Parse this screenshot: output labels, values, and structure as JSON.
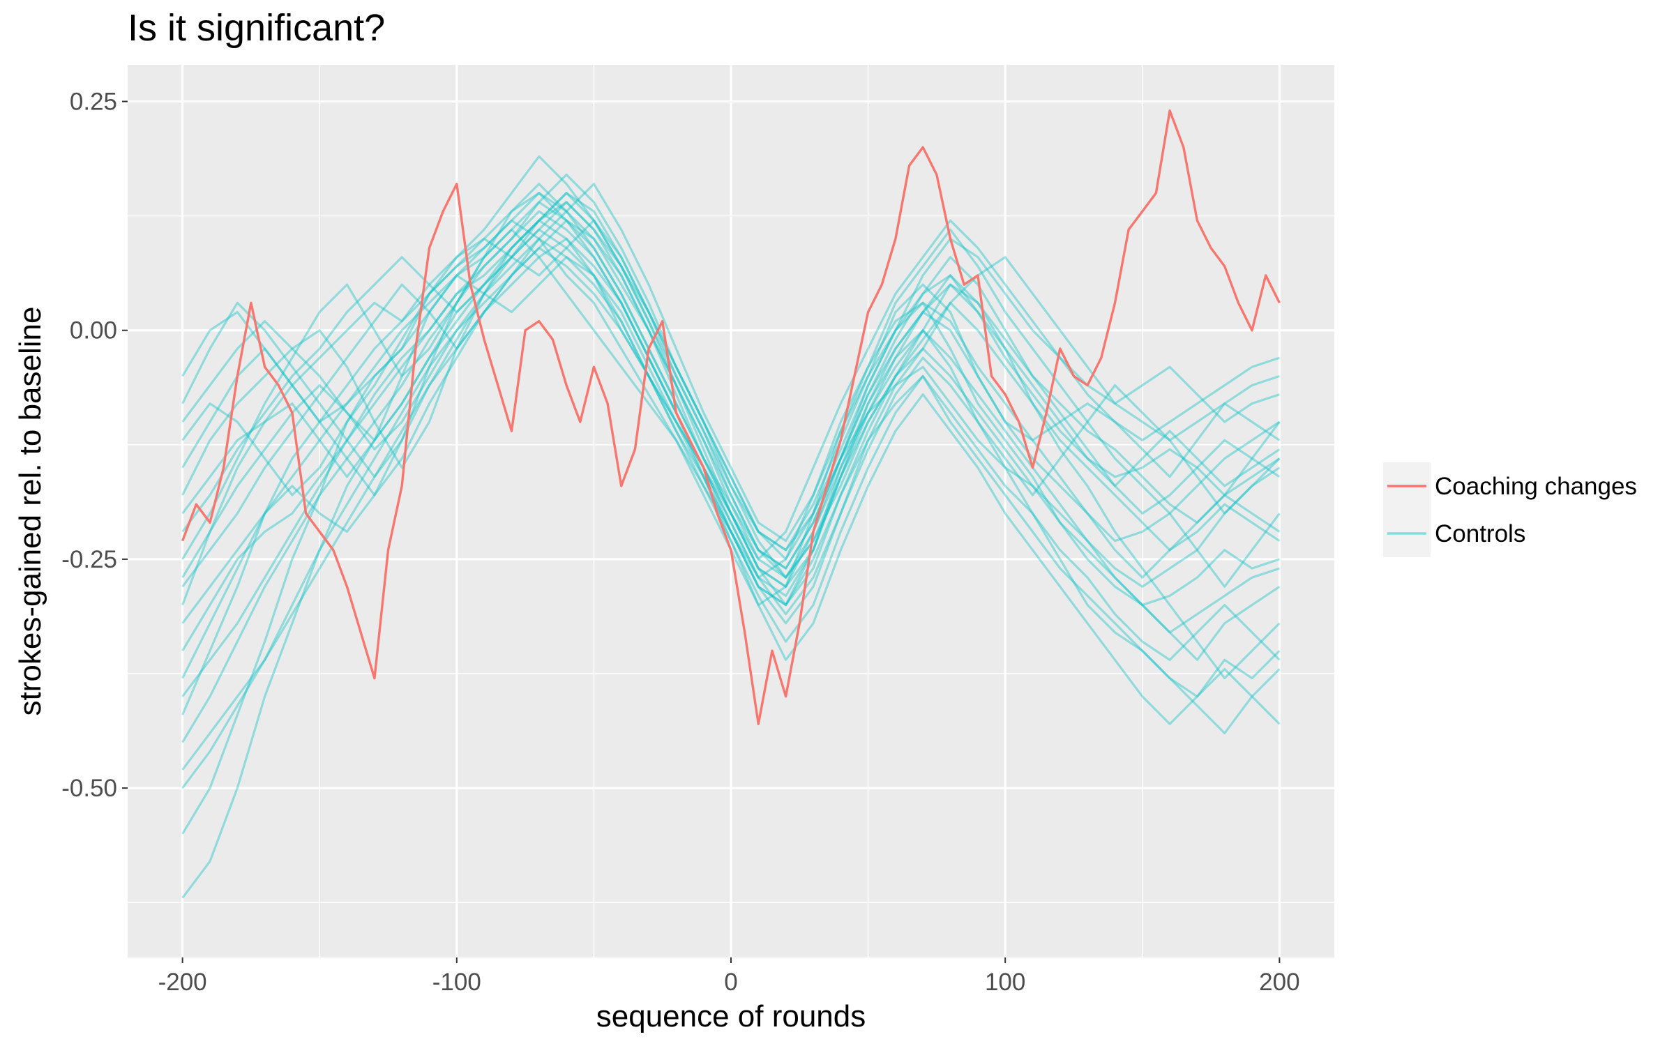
{
  "chart_data": {
    "type": "line",
    "title": "Is it significant?",
    "xlabel": "sequence of rounds",
    "ylabel": "strokes-gained rel. to baseline",
    "xlim": [
      -220,
      220
    ],
    "ylim": [
      -0.685,
      0.29
    ],
    "x_ticks": [
      -200,
      -100,
      0,
      100,
      200
    ],
    "x_tick_labels": [
      "-200",
      "-100",
      "0",
      "100",
      "200"
    ],
    "y_ticks": [
      0.25,
      0,
      -0.25,
      -0.5
    ],
    "y_tick_labels": [
      "0.25",
      "0.00",
      "-0.25",
      "-0.50"
    ],
    "grid": true,
    "legend_position": "right",
    "colors": {
      "coaching": "#F8766D",
      "controls": "#00BFC4",
      "panel": "#EBEBEB",
      "grid": "#FFFFFF"
    },
    "legend": [
      {
        "label": "Coaching changes",
        "color": "#F8766D"
      },
      {
        "label": "Controls",
        "color": "#00BFC4"
      }
    ],
    "series": [
      {
        "name": "Coaching changes",
        "color": "#F8766D",
        "x": [
          -200,
          -195,
          -190,
          -185,
          -180,
          -175,
          -170,
          -165,
          -160,
          -155,
          -150,
          -145,
          -140,
          -135,
          -130,
          -125,
          -120,
          -115,
          -110,
          -105,
          -100,
          -95,
          -90,
          -85,
          -80,
          -75,
          -70,
          -65,
          -60,
          -55,
          -50,
          -45,
          -40,
          -35,
          -30,
          -25,
          -20,
          -15,
          -10,
          -5,
          0,
          5,
          10,
          15,
          20,
          25,
          30,
          35,
          40,
          45,
          50,
          55,
          60,
          65,
          70,
          75,
          80,
          85,
          90,
          95,
          100,
          105,
          110,
          115,
          120,
          125,
          130,
          135,
          140,
          145,
          150,
          155,
          160,
          165,
          170,
          175,
          180,
          185,
          190,
          195,
          200
        ],
        "y": [
          -0.23,
          -0.19,
          -0.21,
          -0.15,
          -0.05,
          0.03,
          -0.04,
          -0.06,
          -0.09,
          -0.2,
          -0.22,
          -0.24,
          -0.28,
          -0.33,
          -0.38,
          -0.24,
          -0.17,
          -0.02,
          0.09,
          0.13,
          0.16,
          0.05,
          -0.01,
          -0.06,
          -0.11,
          0.0,
          0.01,
          -0.01,
          -0.06,
          -0.1,
          -0.04,
          -0.08,
          -0.17,
          -0.13,
          -0.02,
          0.01,
          -0.09,
          -0.12,
          -0.15,
          -0.2,
          -0.24,
          -0.33,
          -0.43,
          -0.35,
          -0.4,
          -0.32,
          -0.22,
          -0.17,
          -0.12,
          -0.05,
          0.02,
          0.05,
          0.1,
          0.18,
          0.2,
          0.17,
          0.1,
          0.05,
          0.06,
          -0.05,
          -0.07,
          -0.1,
          -0.15,
          -0.09,
          -0.02,
          -0.05,
          -0.06,
          -0.03,
          0.03,
          0.11,
          0.13,
          0.15,
          0.24,
          0.2,
          0.12,
          0.09,
          0.07,
          0.03,
          0.0,
          0.06,
          0.03
        ]
      }
    ],
    "controls": {
      "name": "Controls",
      "color": "#00BFC4",
      "x": [
        -200,
        -190,
        -180,
        -170,
        -160,
        -150,
        -140,
        -130,
        -120,
        -110,
        -100,
        -90,
        -80,
        -70,
        -60,
        -50,
        -40,
        -30,
        -20,
        -10,
        0,
        10,
        20,
        30,
        40,
        50,
        60,
        70,
        80,
        90,
        100,
        110,
        120,
        130,
        140,
        150,
        160,
        170,
        180,
        190,
        200
      ],
      "lines": [
        [
          -0.55,
          -0.5,
          -0.42,
          -0.34,
          -0.25,
          -0.18,
          -0.1,
          -0.05,
          -0.02,
          0.04,
          0.07,
          0.09,
          0.12,
          0.1,
          0.06,
          0.03,
          -0.02,
          -0.07,
          -0.12,
          -0.18,
          -0.24,
          -0.3,
          -0.28,
          -0.2,
          -0.11,
          -0.05,
          0.02,
          0.05,
          0.02,
          -0.05,
          -0.1,
          -0.14,
          -0.17,
          -0.2,
          -0.23,
          -0.22,
          -0.2,
          -0.24,
          -0.28,
          -0.24,
          -0.2
        ],
        [
          -0.62,
          -0.58,
          -0.5,
          -0.4,
          -0.32,
          -0.24,
          -0.17,
          -0.12,
          -0.08,
          -0.03,
          0.02,
          0.05,
          0.09,
          0.12,
          0.1,
          0.06,
          0.0,
          -0.05,
          -0.1,
          -0.15,
          -0.22,
          -0.27,
          -0.25,
          -0.18,
          -0.1,
          -0.04,
          0.01,
          0.03,
          -0.02,
          -0.08,
          -0.12,
          -0.16,
          -0.21,
          -0.25,
          -0.28,
          -0.3,
          -0.33,
          -0.36,
          -0.32,
          -0.3,
          -0.28
        ],
        [
          -0.42,
          -0.35,
          -0.28,
          -0.2,
          -0.14,
          -0.1,
          -0.06,
          -0.02,
          0.01,
          0.05,
          0.08,
          0.1,
          0.13,
          0.15,
          0.13,
          0.1,
          0.05,
          0.0,
          -0.06,
          -0.12,
          -0.19,
          -0.25,
          -0.27,
          -0.22,
          -0.14,
          -0.06,
          0.0,
          0.04,
          0.06,
          0.02,
          -0.03,
          -0.07,
          -0.11,
          -0.14,
          -0.16,
          -0.15,
          -0.13,
          -0.15,
          -0.18,
          -0.14,
          -0.1
        ],
        [
          -0.3,
          -0.22,
          -0.15,
          -0.1,
          -0.08,
          -0.12,
          -0.16,
          -0.12,
          -0.05,
          0.02,
          0.06,
          0.04,
          0.02,
          0.05,
          0.08,
          0.06,
          0.02,
          -0.04,
          -0.1,
          -0.16,
          -0.22,
          -0.28,
          -0.3,
          -0.24,
          -0.15,
          -0.08,
          -0.03,
          0.0,
          -0.04,
          -0.1,
          -0.15,
          -0.2,
          -0.25,
          -0.3,
          -0.33,
          -0.35,
          -0.38,
          -0.4,
          -0.36,
          -0.38,
          -0.35
        ],
        [
          -0.18,
          -0.12,
          -0.08,
          -0.05,
          -0.02,
          0.0,
          -0.04,
          -0.1,
          -0.15,
          -0.1,
          -0.02,
          0.04,
          0.09,
          0.12,
          0.14,
          0.11,
          0.06,
          0.0,
          -0.07,
          -0.14,
          -0.2,
          -0.26,
          -0.28,
          -0.24,
          -0.16,
          -0.08,
          -0.02,
          0.02,
          0.0,
          -0.05,
          -0.1,
          -0.12,
          -0.1,
          -0.08,
          -0.1,
          -0.13,
          -0.16,
          -0.12,
          -0.08,
          -0.06,
          -0.05
        ],
        [
          -0.08,
          -0.02,
          0.03,
          0.0,
          -0.04,
          -0.08,
          -0.12,
          -0.16,
          -0.12,
          -0.04,
          0.03,
          0.08,
          0.13,
          0.16,
          0.13,
          0.09,
          0.04,
          -0.02,
          -0.08,
          -0.14,
          -0.19,
          -0.24,
          -0.27,
          -0.23,
          -0.17,
          -0.1,
          -0.05,
          -0.02,
          -0.05,
          -0.09,
          -0.13,
          -0.17,
          -0.21,
          -0.24,
          -0.27,
          -0.3,
          -0.29,
          -0.27,
          -0.24,
          -0.26,
          -0.25
        ],
        [
          -0.35,
          -0.3,
          -0.25,
          -0.22,
          -0.2,
          -0.16,
          -0.12,
          -0.07,
          -0.03,
          0.0,
          0.04,
          0.07,
          0.1,
          0.14,
          0.17,
          0.14,
          0.09,
          0.03,
          -0.04,
          -0.1,
          -0.16,
          -0.22,
          -0.24,
          -0.2,
          -0.14,
          -0.09,
          -0.06,
          -0.04,
          -0.08,
          -0.12,
          -0.15,
          -0.17,
          -0.2,
          -0.23,
          -0.26,
          -0.28,
          -0.26,
          -0.24,
          -0.2,
          -0.17,
          -0.15
        ],
        [
          -0.25,
          -0.2,
          -0.14,
          -0.08,
          -0.03,
          0.02,
          0.05,
          0.0,
          -0.05,
          -0.02,
          0.03,
          0.08,
          0.11,
          0.08,
          0.04,
          0.0,
          -0.04,
          -0.08,
          -0.12,
          -0.17,
          -0.22,
          -0.28,
          -0.32,
          -0.28,
          -0.2,
          -0.12,
          -0.06,
          -0.02,
          0.03,
          0.06,
          0.08,
          0.04,
          0.0,
          -0.04,
          -0.08,
          -0.1,
          -0.12,
          -0.1,
          -0.08,
          -0.1,
          -0.12
        ],
        [
          -0.45,
          -0.4,
          -0.34,
          -0.28,
          -0.23,
          -0.18,
          -0.14,
          -0.1,
          -0.06,
          -0.01,
          0.03,
          0.07,
          0.1,
          0.13,
          0.11,
          0.08,
          0.03,
          -0.03,
          -0.09,
          -0.15,
          -0.21,
          -0.27,
          -0.29,
          -0.24,
          -0.16,
          -0.09,
          -0.03,
          0.02,
          0.05,
          0.03,
          -0.02,
          -0.08,
          -0.13,
          -0.17,
          -0.22,
          -0.26,
          -0.3,
          -0.34,
          -0.38,
          -0.35,
          -0.32
        ],
        [
          -0.12,
          -0.08,
          -0.1,
          -0.14,
          -0.18,
          -0.15,
          -0.1,
          -0.06,
          -0.01,
          0.04,
          0.08,
          0.11,
          0.15,
          0.19,
          0.16,
          0.12,
          0.07,
          0.01,
          -0.06,
          -0.12,
          -0.18,
          -0.24,
          -0.26,
          -0.21,
          -0.14,
          -0.07,
          -0.01,
          0.04,
          0.08,
          0.05,
          0.0,
          -0.05,
          -0.08,
          -0.11,
          -0.13,
          -0.16,
          -0.19,
          -0.21,
          -0.18,
          -0.16,
          -0.14
        ],
        [
          -0.38,
          -0.32,
          -0.26,
          -0.2,
          -0.17,
          -0.2,
          -0.22,
          -0.18,
          -0.12,
          -0.06,
          -0.01,
          0.04,
          0.08,
          0.11,
          0.09,
          0.06,
          0.01,
          -0.05,
          -0.11,
          -0.17,
          -0.23,
          -0.29,
          -0.34,
          -0.3,
          -0.22,
          -0.15,
          -0.09,
          -0.05,
          -0.09,
          -0.13,
          -0.17,
          -0.2,
          -0.24,
          -0.27,
          -0.31,
          -0.34,
          -0.36,
          -0.33,
          -0.3,
          -0.33,
          -0.36
        ],
        [
          -0.2,
          -0.16,
          -0.12,
          -0.1,
          -0.06,
          -0.03,
          0.0,
          0.03,
          0.01,
          0.04,
          0.07,
          0.1,
          0.08,
          0.06,
          0.09,
          0.12,
          0.08,
          0.02,
          -0.05,
          -0.11,
          -0.17,
          -0.22,
          -0.24,
          -0.19,
          -0.12,
          -0.05,
          0.0,
          0.06,
          0.1,
          0.08,
          0.04,
          0.0,
          -0.03,
          -0.06,
          -0.08,
          -0.06,
          -0.04,
          -0.07,
          -0.1,
          -0.08,
          -0.07
        ],
        [
          -0.48,
          -0.44,
          -0.4,
          -0.36,
          -0.3,
          -0.24,
          -0.19,
          -0.14,
          -0.09,
          -0.04,
          0.0,
          0.03,
          0.06,
          0.09,
          0.12,
          0.1,
          0.06,
          0.0,
          -0.06,
          -0.13,
          -0.2,
          -0.26,
          -0.3,
          -0.26,
          -0.18,
          -0.12,
          -0.08,
          -0.05,
          -0.1,
          -0.14,
          -0.18,
          -0.22,
          -0.26,
          -0.29,
          -0.32,
          -0.35,
          -0.38,
          -0.41,
          -0.44,
          -0.4,
          -0.37
        ],
        [
          -0.28,
          -0.24,
          -0.2,
          -0.15,
          -0.11,
          -0.07,
          -0.03,
          0.01,
          0.05,
          0.02,
          -0.02,
          0.02,
          0.06,
          0.1,
          0.13,
          0.16,
          0.11,
          0.05,
          -0.02,
          -0.09,
          -0.15,
          -0.21,
          -0.23,
          -0.18,
          -0.11,
          -0.04,
          0.03,
          0.07,
          0.11,
          0.07,
          0.02,
          -0.02,
          -0.06,
          -0.1,
          -0.14,
          -0.17,
          -0.2,
          -0.17,
          -0.14,
          -0.12,
          -0.1
        ],
        [
          -0.15,
          -0.1,
          -0.05,
          -0.02,
          -0.06,
          -0.1,
          -0.14,
          -0.18,
          -0.14,
          -0.08,
          -0.03,
          0.02,
          0.06,
          0.09,
          0.07,
          0.04,
          0.0,
          -0.05,
          -0.1,
          -0.15,
          -0.21,
          -0.27,
          -0.31,
          -0.27,
          -0.2,
          -0.13,
          -0.07,
          -0.03,
          -0.06,
          -0.1,
          -0.14,
          -0.18,
          -0.14,
          -0.1,
          -0.06,
          -0.09,
          -0.12,
          -0.16,
          -0.2,
          -0.17,
          -0.14
        ],
        [
          -0.05,
          0.0,
          0.02,
          -0.02,
          -0.06,
          -0.1,
          -0.08,
          -0.05,
          -0.02,
          0.02,
          0.06,
          0.09,
          0.12,
          0.15,
          0.12,
          0.08,
          0.03,
          -0.03,
          -0.09,
          -0.15,
          -0.2,
          -0.25,
          -0.22,
          -0.15,
          -0.08,
          -0.02,
          0.04,
          0.08,
          0.12,
          0.09,
          0.05,
          0.01,
          -0.03,
          -0.07,
          -0.1,
          -0.12,
          -0.1,
          -0.08,
          -0.06,
          -0.04,
          -0.03
        ],
        [
          -0.32,
          -0.28,
          -0.24,
          -0.2,
          -0.16,
          -0.12,
          -0.08,
          -0.04,
          0.0,
          0.03,
          0.06,
          0.08,
          0.11,
          0.14,
          0.12,
          0.09,
          0.04,
          -0.02,
          -0.08,
          -0.14,
          -0.2,
          -0.26,
          -0.28,
          -0.22,
          -0.15,
          -0.09,
          -0.04,
          0.0,
          -0.03,
          -0.07,
          -0.11,
          -0.15,
          -0.19,
          -0.23,
          -0.27,
          -0.3,
          -0.33,
          -0.31,
          -0.29,
          -0.27,
          -0.26
        ],
        [
          -0.4,
          -0.36,
          -0.32,
          -0.27,
          -0.22,
          -0.17,
          -0.12,
          -0.08,
          -0.04,
          0.0,
          0.04,
          0.06,
          0.09,
          0.12,
          0.15,
          0.13,
          0.08,
          0.02,
          -0.04,
          -0.1,
          -0.16,
          -0.22,
          -0.25,
          -0.2,
          -0.13,
          -0.06,
          0.0,
          0.03,
          0.01,
          -0.04,
          -0.08,
          -0.12,
          -0.16,
          -0.2,
          -0.24,
          -0.27,
          -0.24,
          -0.21,
          -0.18,
          -0.2,
          -0.22
        ],
        [
          -0.1,
          -0.06,
          -0.02,
          0.01,
          -0.02,
          -0.05,
          -0.09,
          -0.13,
          -0.1,
          -0.05,
          0.0,
          0.04,
          0.07,
          0.1,
          0.08,
          0.05,
          0.01,
          -0.05,
          -0.11,
          -0.16,
          -0.22,
          -0.28,
          -0.3,
          -0.25,
          -0.18,
          -0.11,
          -0.05,
          0.0,
          0.05,
          0.02,
          -0.02,
          -0.06,
          -0.1,
          -0.14,
          -0.17,
          -0.2,
          -0.18,
          -0.15,
          -0.12,
          -0.14,
          -0.16
        ],
        [
          -0.22,
          -0.18,
          -0.13,
          -0.09,
          -0.05,
          -0.02,
          0.02,
          0.05,
          0.08,
          0.05,
          0.02,
          0.05,
          0.08,
          0.11,
          0.14,
          0.11,
          0.07,
          0.02,
          -0.04,
          -0.1,
          -0.17,
          -0.23,
          -0.27,
          -0.23,
          -0.16,
          -0.1,
          -0.05,
          -0.01,
          0.03,
          0.0,
          -0.04,
          -0.08,
          -0.12,
          -0.15,
          -0.18,
          -0.21,
          -0.24,
          -0.22,
          -0.19,
          -0.21,
          -0.23
        ],
        [
          -0.5,
          -0.46,
          -0.41,
          -0.36,
          -0.31,
          -0.26,
          -0.21,
          -0.16,
          -0.11,
          -0.06,
          -0.02,
          0.02,
          0.05,
          0.08,
          0.1,
          0.07,
          0.03,
          -0.03,
          -0.09,
          -0.16,
          -0.23,
          -0.3,
          -0.36,
          -0.32,
          -0.24,
          -0.17,
          -0.11,
          -0.07,
          -0.11,
          -0.15,
          -0.2,
          -0.24,
          -0.28,
          -0.32,
          -0.36,
          -0.4,
          -0.43,
          -0.4,
          -0.37,
          -0.4,
          -0.43
        ],
        [
          -0.27,
          -0.22,
          -0.17,
          -0.13,
          -0.09,
          -0.06,
          -0.09,
          -0.12,
          -0.08,
          -0.03,
          0.01,
          0.05,
          0.08,
          0.12,
          0.15,
          0.12,
          0.07,
          0.01,
          -0.05,
          -0.11,
          -0.18,
          -0.24,
          -0.26,
          -0.21,
          -0.14,
          -0.07,
          -0.02,
          0.02,
          0.06,
          0.03,
          -0.01,
          -0.05,
          -0.09,
          -0.13,
          -0.17,
          -0.14,
          -0.11,
          -0.14,
          -0.17,
          -0.15,
          -0.13
        ]
      ]
    }
  }
}
